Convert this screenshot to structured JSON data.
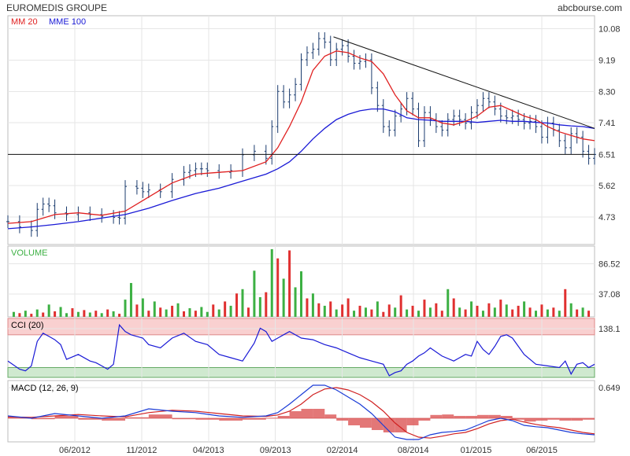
{
  "header": {
    "title": "EUROMEDIS GROUPE",
    "source": "abcbourse.com"
  },
  "colors": {
    "candle": "#1a3b6e",
    "mm20": "#e02020",
    "mme100": "#1a1ad6",
    "vol_up": "#3cb043",
    "vol_down": "#e03030",
    "cci_upper_band": "#f9d0d0",
    "cci_lower_band": "#cfe9cf",
    "macd_line": "#1a3bd6",
    "macd_signal": "#d02020",
    "macd_hist": "#d94a4a"
  },
  "chart_data": [
    {
      "type": "line",
      "panel": "price",
      "legend": [
        {
          "name": "MM 20",
          "color": "#e02020"
        },
        {
          "name": "MME 100",
          "color": "#1a1ad6"
        }
      ],
      "y_ticks": [
        "10.08",
        "9.19",
        "8.30",
        "7.41",
        "6.51",
        "5.62",
        "4.73"
      ],
      "y_tick_values": [
        10.08,
        9.19,
        8.3,
        7.41,
        6.51,
        5.62,
        4.73
      ],
      "ylim": [
        3.95,
        10.45
      ],
      "x_ticks": [
        "06/2012",
        "11/2012",
        "04/2013",
        "09/2013",
        "02/2014",
        "08/2014",
        "01/2015",
        "06/2015"
      ],
      "x_range": [
        0,
        100
      ],
      "x_tick_positions": [
        11.4,
        22.8,
        34.2,
        45.6,
        57.0,
        69.1,
        79.8,
        91.0
      ],
      "price_x": [
        0,
        2,
        4,
        5,
        6,
        7,
        8,
        10,
        12,
        14,
        16,
        18,
        19,
        20,
        22,
        23,
        24,
        26,
        28,
        30,
        31,
        32,
        33,
        34,
        36,
        38,
        40,
        42,
        44,
        45,
        46,
        47,
        48,
        49,
        50,
        51,
        52,
        53,
        54,
        55,
        56,
        57,
        58,
        59,
        60,
        61,
        62,
        63,
        64,
        65,
        66,
        67,
        68,
        69,
        70,
        71,
        72,
        73,
        74,
        75,
        76,
        77,
        78,
        79,
        80,
        81,
        82,
        83,
        84,
        85,
        86,
        87,
        88,
        89,
        90,
        91,
        92,
        93,
        94,
        95,
        96,
        97,
        98,
        99,
        100
      ],
      "price_close": [
        4.6,
        4.45,
        4.35,
        4.95,
        5.1,
        5.05,
        4.85,
        4.8,
        4.85,
        4.8,
        4.75,
        4.72,
        4.7,
        5.6,
        5.55,
        5.45,
        5.5,
        5.45,
        5.8,
        6.0,
        6.05,
        6.1,
        6.1,
        6.05,
        6.0,
        6.05,
        6.5,
        6.6,
        6.4,
        7.3,
        8.3,
        8.0,
        8.2,
        8.5,
        9.2,
        9.4,
        9.5,
        9.8,
        9.7,
        9.2,
        9.5,
        9.6,
        9.3,
        9.1,
        9.15,
        9.2,
        8.4,
        7.9,
        7.3,
        7.2,
        7.6,
        7.8,
        8.1,
        7.8,
        6.9,
        7.7,
        7.5,
        7.3,
        7.2,
        7.5,
        7.6,
        7.5,
        7.4,
        7.7,
        7.9,
        8.1,
        8.0,
        7.8,
        7.6,
        7.55,
        7.6,
        7.5,
        7.4,
        7.45,
        7.3,
        7.0,
        7.4,
        7.2,
        6.9,
        6.7,
        7.1,
        7.0,
        6.6,
        6.4,
        6.51
      ],
      "mm20_x": [
        0,
        4,
        8,
        12,
        16,
        20,
        24,
        28,
        32,
        36,
        40,
        44,
        46,
        48,
        50,
        52,
        54,
        56,
        58,
        60,
        62,
        64,
        66,
        68,
        70,
        72,
        74,
        76,
        78,
        80,
        82,
        84,
        86,
        88,
        90,
        92,
        94,
        96,
        98,
        100
      ],
      "mm20": [
        4.55,
        4.6,
        4.8,
        4.85,
        4.78,
        4.9,
        5.3,
        5.7,
        5.95,
        6.0,
        6.05,
        6.3,
        6.7,
        7.3,
        8.0,
        8.9,
        9.3,
        9.45,
        9.4,
        9.25,
        9.15,
        8.8,
        8.2,
        7.75,
        7.55,
        7.55,
        7.4,
        7.35,
        7.45,
        7.6,
        7.85,
        7.9,
        7.75,
        7.6,
        7.5,
        7.3,
        7.15,
        7.05,
        6.95,
        6.9
      ],
      "mme100_x": [
        0,
        4,
        8,
        12,
        16,
        20,
        24,
        28,
        32,
        36,
        40,
        44,
        46,
        48,
        50,
        52,
        54,
        56,
        58,
        60,
        62,
        64,
        66,
        68,
        70,
        72,
        74,
        76,
        78,
        80,
        82,
        84,
        86,
        88,
        90,
        92,
        94,
        96,
        98,
        100
      ],
      "mme100": [
        4.4,
        4.45,
        4.52,
        4.6,
        4.7,
        4.8,
        4.98,
        5.2,
        5.4,
        5.55,
        5.75,
        5.95,
        6.1,
        6.3,
        6.6,
        6.95,
        7.25,
        7.5,
        7.65,
        7.75,
        7.8,
        7.8,
        7.72,
        7.55,
        7.5,
        7.48,
        7.45,
        7.45,
        7.45,
        7.42,
        7.45,
        7.48,
        7.45,
        7.45,
        7.42,
        7.4,
        7.35,
        7.32,
        7.3,
        7.25
      ],
      "trendlines": [
        {
          "x": [
            0,
            100
          ],
          "y": [
            6.51,
            6.51
          ]
        },
        {
          "x": [
            55.5,
            100
          ],
          "y": [
            9.85,
            7.25
          ]
        }
      ]
    },
    {
      "type": "bar",
      "panel": "volume",
      "label": "VOLUME",
      "y_ticks": [
        "86.52",
        "37.08"
      ],
      "y_tick_values": [
        86.52,
        37.08
      ],
      "ylim": [
        0,
        115
      ],
      "x": [
        1,
        2,
        3,
        4,
        5,
        6,
        7,
        8,
        9,
        10,
        11,
        12,
        13,
        14,
        15,
        16,
        17,
        18,
        19,
        20,
        21,
        22,
        23,
        24,
        25,
        26,
        27,
        28,
        29,
        30,
        31,
        32,
        33,
        34,
        35,
        36,
        37,
        38,
        39,
        40,
        41,
        42,
        43,
        44,
        45,
        46,
        47,
        48,
        49,
        50,
        51,
        52,
        53,
        54,
        55,
        56,
        57,
        58,
        59,
        60,
        61,
        62,
        63,
        64,
        65,
        66,
        67,
        68,
        69,
        70,
        71,
        72,
        73,
        74,
        75,
        76,
        77,
        78,
        79,
        80,
        81,
        82,
        83,
        84,
        85,
        86,
        87,
        88,
        89,
        90,
        91,
        92,
        93,
        94,
        95,
        96,
        97,
        98,
        99
      ],
      "values": [
        8,
        6,
        10,
        5,
        12,
        7,
        20,
        9,
        16,
        6,
        14,
        8,
        11,
        7,
        10,
        6,
        12,
        9,
        5,
        28,
        55,
        20,
        30,
        10,
        25,
        15,
        12,
        18,
        22,
        9,
        14,
        10,
        16,
        8,
        20,
        12,
        25,
        18,
        38,
        45,
        15,
        75,
        32,
        40,
        110,
        95,
        62,
        108,
        48,
        74,
        30,
        38,
        22,
        18,
        25,
        12,
        20,
        30,
        10,
        18,
        15,
        12,
        25,
        8,
        20,
        15,
        35,
        12,
        18,
        10,
        28,
        15,
        22,
        10,
        45,
        30,
        15,
        12,
        25,
        18,
        10,
        22,
        15,
        28,
        20,
        12,
        18,
        25,
        15,
        10,
        20,
        12,
        15,
        10,
        45,
        22,
        12,
        15,
        10
      ],
      "colors_up": [
        true,
        false,
        true,
        false,
        true,
        false,
        true,
        false,
        true,
        true,
        false,
        true,
        false,
        true,
        false,
        true,
        false,
        true,
        false,
        true,
        true,
        false,
        true,
        false,
        true,
        false,
        true,
        false,
        true,
        false,
        true,
        false,
        true,
        true,
        false,
        true,
        false,
        true,
        false,
        true,
        false,
        true,
        true,
        false,
        true,
        false,
        true,
        false,
        true,
        true,
        false,
        true,
        false,
        true,
        false,
        true,
        false,
        false,
        true,
        false,
        true,
        false,
        true,
        false,
        false,
        true,
        false,
        true,
        false,
        true,
        false,
        true,
        false,
        false,
        true,
        false,
        true,
        false,
        true,
        false,
        true,
        false,
        true,
        false,
        true,
        false,
        false,
        true,
        false,
        true,
        false,
        true,
        false,
        true,
        false,
        true,
        false,
        true,
        false
      ]
    },
    {
      "type": "line",
      "panel": "cci",
      "label": "CCI (20)",
      "y_ticks": [
        "138.1"
      ],
      "y_tick_values": [
        138.1
      ],
      "ylim": [
        -160,
        200
      ],
      "upper_band": [
        100,
        200
      ],
      "lower_band": [
        -160,
        -100
      ],
      "x": [
        0,
        2,
        3,
        4,
        5,
        6,
        7,
        8,
        9,
        10,
        12,
        14,
        15,
        16,
        17,
        18,
        19,
        20,
        21,
        22,
        23,
        24,
        26,
        28,
        30,
        32,
        34,
        36,
        38,
        40,
        42,
        43,
        44,
        45,
        46,
        47,
        48,
        50,
        52,
        54,
        56,
        58,
        60,
        62,
        64,
        65,
        66,
        67,
        68,
        69,
        70,
        71,
        72,
        74,
        76,
        77,
        78,
        79,
        80,
        81,
        82,
        83,
        84,
        85,
        86,
        88,
        90,
        92,
        94,
        95,
        96,
        97,
        98,
        99,
        100
      ],
      "values": [
        -60,
        -110,
        -120,
        -90,
        60,
        110,
        90,
        70,
        40,
        -50,
        -20,
        -60,
        -70,
        -90,
        -110,
        -80,
        160,
        120,
        100,
        90,
        80,
        40,
        20,
        80,
        110,
        60,
        40,
        -20,
        -40,
        -60,
        50,
        140,
        120,
        60,
        80,
        100,
        120,
        80,
        70,
        40,
        20,
        -10,
        -40,
        -60,
        -80,
        -150,
        -130,
        -120,
        -80,
        -60,
        -30,
        -10,
        20,
        -30,
        -60,
        -40,
        -20,
        -30,
        60,
        10,
        -20,
        30,
        90,
        100,
        80,
        -20,
        -80,
        -90,
        -100,
        -60,
        -140,
        -80,
        -70,
        -100,
        -80
      ]
    },
    {
      "type": "line",
      "panel": "macd",
      "label": "MACD (12, 26, 9)",
      "y_ticks": [
        "0.649"
      ],
      "y_tick_values": [
        0.649
      ],
      "ylim": [
        -0.5,
        0.8
      ],
      "x": [
        0,
        4,
        8,
        12,
        16,
        20,
        24,
        28,
        32,
        36,
        40,
        44,
        46,
        48,
        50,
        52,
        54,
        56,
        58,
        60,
        62,
        64,
        66,
        68,
        70,
        72,
        74,
        76,
        78,
        80,
        82,
        84,
        86,
        88,
        90,
        92,
        94,
        96,
        98,
        100
      ],
      "macd": [
        0.05,
        0.0,
        0.1,
        0.05,
        0.0,
        0.05,
        0.2,
        0.15,
        0.12,
        0.05,
        0.02,
        0.05,
        0.12,
        0.3,
        0.5,
        0.7,
        0.7,
        0.6,
        0.45,
        0.3,
        0.1,
        -0.15,
        -0.4,
        -0.45,
        -0.45,
        -0.35,
        -0.3,
        -0.28,
        -0.25,
        -0.15,
        -0.05,
        0.0,
        -0.05,
        -0.15,
        -0.18,
        -0.2,
        -0.25,
        -0.3,
        -0.33,
        -0.35
      ],
      "signal": [
        0.03,
        0.02,
        0.05,
        0.08,
        0.05,
        0.03,
        0.12,
        0.17,
        0.15,
        0.1,
        0.05,
        0.04,
        0.07,
        0.15,
        0.3,
        0.5,
        0.62,
        0.65,
        0.6,
        0.5,
        0.35,
        0.15,
        -0.1,
        -0.3,
        -0.4,
        -0.42,
        -0.38,
        -0.33,
        -0.3,
        -0.22,
        -0.12,
        -0.05,
        -0.02,
        -0.08,
        -0.13,
        -0.17,
        -0.2,
        -0.25,
        -0.3,
        -0.33
      ],
      "hist": [
        0.02,
        -0.02,
        0.05,
        -0.03,
        -0.05,
        0.02,
        0.08,
        -0.02,
        -0.03,
        -0.05,
        -0.03,
        0.01,
        0.05,
        0.15,
        0.2,
        0.2,
        0.08,
        -0.05,
        -0.15,
        -0.2,
        -0.25,
        -0.3,
        -0.3,
        -0.15,
        -0.05,
        0.07,
        0.08,
        0.05,
        0.05,
        0.07,
        0.07,
        0.05,
        -0.03,
        -0.07,
        -0.05,
        -0.03,
        -0.05,
        -0.05,
        -0.03,
        -0.02
      ]
    }
  ]
}
